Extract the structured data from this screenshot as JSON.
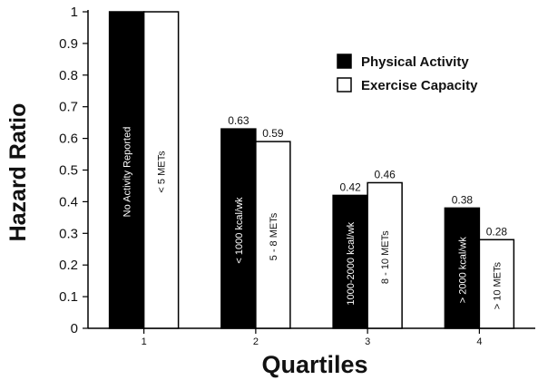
{
  "chart_data": {
    "type": "bar",
    "xlabel": "Quartiles",
    "ylabel": "Hazard Ratio",
    "ylim": [
      0,
      1
    ],
    "yticks": [
      "0",
      "0.1",
      "0.2",
      "0.3",
      "0.4",
      "0.5",
      "0.6",
      "0.7",
      "0.8",
      "0.9",
      "1"
    ],
    "grid": false,
    "legend_position": "top-right",
    "categories": [
      "1",
      "2",
      "3",
      "4"
    ],
    "series": [
      {
        "name": "Physical Activity",
        "color": "#000000",
        "values": [
          1,
          0.63,
          0.42,
          0.38
        ],
        "value_labels": [
          "",
          "0.63",
          "0.42",
          "0.38"
        ],
        "bar_labels": [
          "No Activity Reported",
          "< 1000 kcal/wk",
          "1000-2000 kcal/wk",
          "> 2000 kcal/wk"
        ]
      },
      {
        "name": "Exercise Capacity",
        "color": "#ffffff",
        "values": [
          1,
          0.59,
          0.46,
          0.28
        ],
        "value_labels": [
          "",
          "0.59",
          "0.46",
          "0.28"
        ],
        "bar_labels": [
          "< 5 METs",
          "5 - 8 METs",
          "8 - 10 METs",
          "> 10 METs"
        ]
      }
    ]
  }
}
